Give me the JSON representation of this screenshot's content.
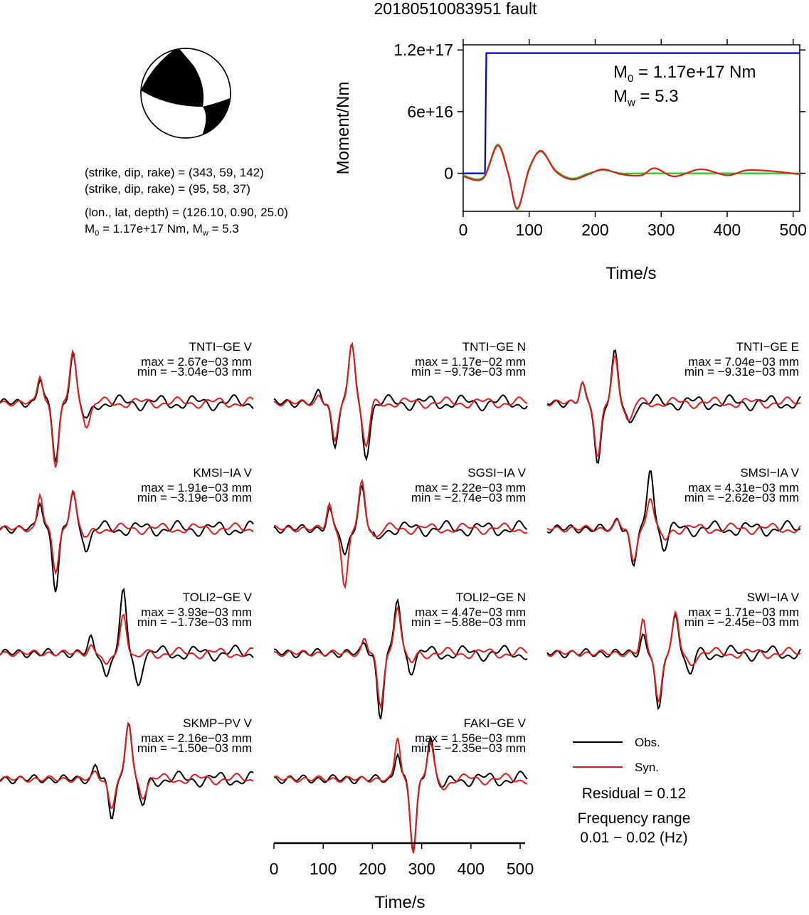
{
  "title": "20180510083951 fault",
  "beachball_info": {
    "line1": "(strike, dip, rake) = (343, 59, 142)",
    "line2": "(strike, dip, rake) = (95, 58, 37)",
    "line3": "(lon., lat, depth) = (126.10, 0.90, 25.0)",
    "m0_prefix": "M",
    "m0_sub": "0",
    "m0_mid": " = 1.17e+17 Nm, M",
    "mw_sub": "w",
    "mw_suffix": " = 5.3"
  },
  "moment_plot": {
    "ylabel": "Moment/Nm",
    "xlabel": "Time/s",
    "xticks": [
      0,
      100,
      200,
      300,
      400,
      500
    ],
    "yticks": [
      {
        "value": 0,
        "label": "0"
      },
      {
        "value": 6e+16,
        "label": "6e+16"
      },
      {
        "value": 1.2e+17,
        "label": "1.2e+17"
      }
    ],
    "m0_text": "M",
    "m0_sub": "0",
    "m0_value": " = 1.17e+17 Nm",
    "mw_text": "M",
    "mw_sub": "w",
    "mw_value": " = 5.3"
  },
  "legend": {
    "obs_label": "Obs.",
    "syn_label": "Syn.",
    "residual": "Residual = 0.12",
    "freq_title": "Frequency range",
    "freq_value": "0.01 − 0.02 (Hz)"
  },
  "waveform_axis": {
    "xlabel": "Time/s",
    "xticks": [
      0,
      100,
      200,
      300,
      400,
      500
    ]
  },
  "colors": {
    "obs": "#000000",
    "syn": "#e31a1c",
    "moment": "#0000cc",
    "stf": "#22cc22"
  },
  "panels": [
    {
      "name": "TNTI−GE V",
      "max": "max = 2.67e−03 mm",
      "min": "min = −3.04e−03 mm"
    },
    {
      "name": "TNTI−GE N",
      "max": "max = 1.17e−02 mm",
      "min": "min = −9.73e−03 mm"
    },
    {
      "name": "TNTI−GE E",
      "max": "max = 7.04e−03 mm",
      "min": "min = −9.31e−03 mm"
    },
    {
      "name": "KMSI−IA V",
      "max": "max = 1.91e−03 mm",
      "min": "min = −3.19e−03 mm"
    },
    {
      "name": "SGSI−IA V",
      "max": "max = 2.22e−03 mm",
      "min": "min = −2.74e−03 mm"
    },
    {
      "name": "SMSI−IA V",
      "max": "max = 4.31e−03 mm",
      "min": "min = −2.62e−03 mm"
    },
    {
      "name": "TOLI2−GE V",
      "max": "max = 3.93e−03 mm",
      "min": "min = −1.73e−03 mm"
    },
    {
      "name": "TOLI2−GE N",
      "max": "max = 4.47e−03 mm",
      "min": "min = −5.88e−03 mm"
    },
    {
      "name": "SWI−IA V",
      "max": "max = 1.71e−03 mm",
      "min": "min = −2.45e−03 mm"
    },
    {
      "name": "SKMP−PV V",
      "max": "max = 2.16e−03 mm",
      "min": "min = −1.50e−03 mm"
    },
    {
      "name": "FAKI−GE V",
      "max": "max = 1.56e−03 mm",
      "min": "min = −2.35e−03 mm"
    }
  ],
  "chart_data": [
    {
      "type": "line",
      "ylabel": "Moment/Nm",
      "xlabel": "Time/s",
      "xlim": [
        0,
        510
      ],
      "ylim": [
        -3.7e+16,
        1.25e+17
      ],
      "series": [
        {
          "name": "",
          "x": [
            0,
            33,
            35,
            510
          ],
          "y": [
            0,
            0,
            1.17e+17,
            1.17e+17
          ]
        },
        {
          "name": "",
          "x": [
            0,
            30,
            52,
            68,
            82,
            100,
            118,
            140,
            165,
            190,
            212,
            240,
            270,
            290,
            320,
            360,
            400,
            430,
            470,
            510
          ],
          "y": [
            -2000000000000000.0,
            -4000000000000000.0,
            2.8e+16,
            1000000000000000.0,
            -3.5e+16,
            5000000000000000.0,
            2.1e+16,
            3000000000000000.0,
            -5000000000000000.0,
            0,
            3000000000000000.0,
            0,
            0,
            0,
            0,
            0,
            0,
            0,
            0,
            0
          ]
        },
        {
          "name": "",
          "x": [
            0,
            30,
            52,
            68,
            82,
            100,
            118,
            140,
            165,
            190,
            212,
            240,
            270,
            290,
            320,
            360,
            400,
            430,
            470,
            510
          ],
          "y": [
            -3000000000000000.0,
            -5000000000000000.0,
            2.7e+16,
            0,
            -3.4e+16,
            4000000000000000.0,
            2.2e+16,
            2000000000000000.0,
            -6000000000000000.0,
            -1000000000000000.0,
            4000000000000000.0,
            -1000000000000000.0,
            -2000000000000000.0,
            5000000000000000.0,
            -3000000000000000.0,
            4000000000000000.0,
            -2000000000000000.0,
            3000000000000000.0,
            2000000000000000.0,
            -1000000000000000.0
          ]
        }
      ]
    }
  ]
}
